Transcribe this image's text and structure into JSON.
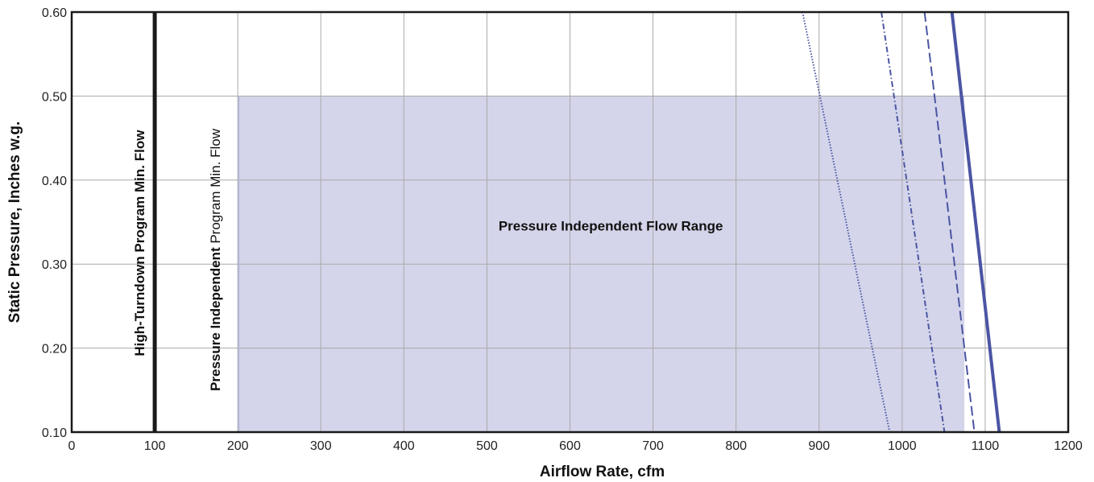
{
  "chart_data": {
    "type": "line",
    "xlabel": "Airflow Rate, cfm",
    "ylabel": "Static Pressure, Inches w.g.",
    "xlim": [
      0,
      1200
    ],
    "ylim": [
      0.1,
      0.6
    ],
    "x_ticks": [
      "0",
      "100",
      "200",
      "300",
      "400",
      "500",
      "600",
      "700",
      "800",
      "900",
      "1000",
      "1100",
      "1200"
    ],
    "y_ticks": [
      "0.10",
      "0.20",
      "0.30",
      "0.40",
      "0.50",
      "0.60"
    ],
    "grid": true,
    "shaded_region": {
      "label": "Pressure Independent Flow Range",
      "x": [
        200,
        1075
      ],
      "y": [
        0.1,
        0.5
      ],
      "color": "#d4d5ea"
    },
    "reference_lines": [
      {
        "x": 100,
        "label": "High-Turndown Program Min. Flow",
        "color": "#1a1a1a"
      },
      {
        "x": 200,
        "label_bold": "Pressure Independent",
        "label_light": " Program Min. Flow",
        "color": "#b5b6d6"
      }
    ],
    "series": [
      {
        "x": [
          880,
          985
        ],
        "y": [
          0.6,
          0.1
        ],
        "style": "dotted",
        "color": "#4b55a3"
      },
      {
        "x": [
          975,
          1051
        ],
        "y": [
          0.6,
          0.1
        ],
        "style": "dash-dot",
        "color": "#4b55a3"
      },
      {
        "x": [
          1027,
          1087
        ],
        "y": [
          0.6,
          0.1
        ],
        "style": "dashed",
        "color": "#4b55a3"
      },
      {
        "x": [
          1060,
          1117
        ],
        "y": [
          0.6,
          0.1
        ],
        "style": "solid",
        "color": "#4b55a3"
      }
    ],
    "colors": {
      "grid": "#a9a9a9",
      "axis": "#1a1a1a"
    }
  }
}
